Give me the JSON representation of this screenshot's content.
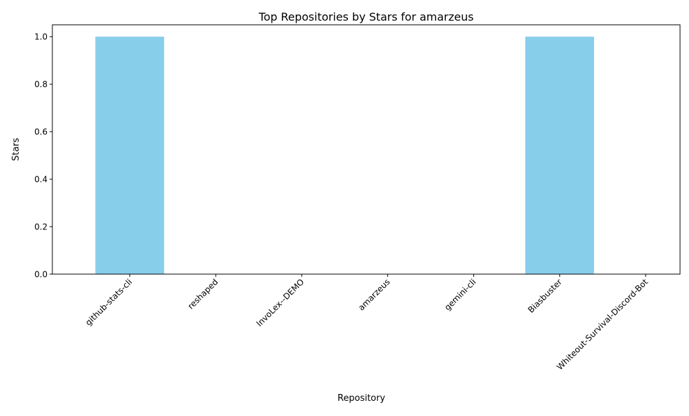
{
  "chart_data": {
    "type": "bar",
    "title": "Top Repositories by Stars for amarzeus",
    "xlabel": "Repository",
    "ylabel": "Stars",
    "categories": [
      "github-stats-cli",
      "reshaped",
      "InvoLex--DEMO",
      "amarzeus",
      "gemini-cli",
      "Biasbuster",
      "Whiteout-Survival-Discord-Bot"
    ],
    "values": [
      1,
      0,
      0,
      0,
      0,
      1,
      0
    ],
    "ylim": [
      0,
      1.05
    ],
    "yticks": [
      0.0,
      0.2,
      0.4,
      0.6,
      0.8,
      1.0
    ],
    "ytick_labels": [
      "0.0",
      "0.2",
      "0.4",
      "0.6",
      "0.8",
      "1.0"
    ],
    "grid": false,
    "bar_color": "#87ceeb"
  }
}
